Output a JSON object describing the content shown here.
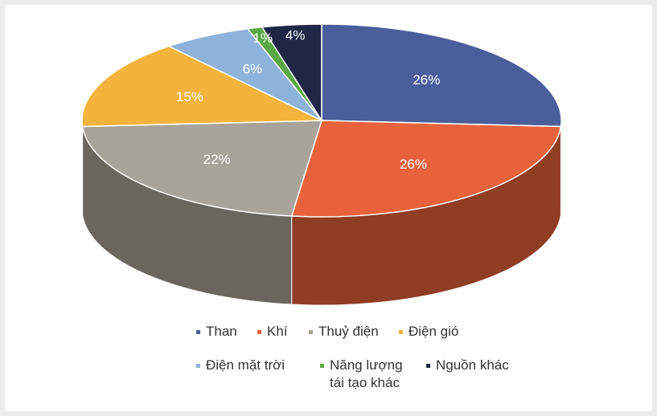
{
  "chart_data": {
    "type": "pie3d",
    "categories": [
      "Than",
      "Khí",
      "Thuỷ điện",
      "Điện gió",
      "Điện mặt trời",
      "Năng lượng tái tạo khác",
      "Nguồn khác"
    ],
    "values": [
      26,
      26,
      22,
      15,
      6,
      1,
      4
    ],
    "value_labels": [
      "26%",
      "26%",
      "22%",
      "15%",
      "6%",
      "1%",
      "4%"
    ],
    "colors": [
      "#4b5e9c",
      "#e8633b",
      "#a9a49b",
      "#f4b33c",
      "#8db3da",
      "#5aa744",
      "#1f2646"
    ]
  }
}
